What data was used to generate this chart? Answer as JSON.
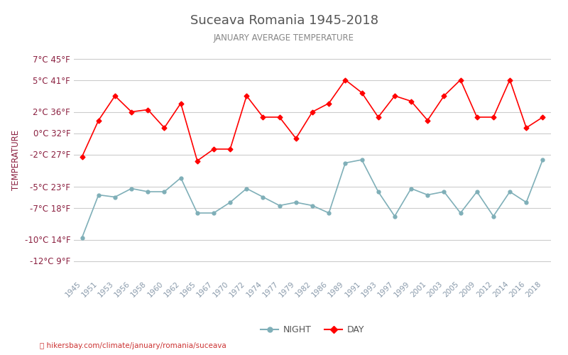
{
  "title": "Suceava Romania 1945-2018",
  "subtitle": "JANUARY AVERAGE TEMPERATURE",
  "ylabel": "TEMPERATURE",
  "url_text": "hikersbay.com/climate/january/romania/suceava",
  "years": [
    "1945",
    "1951",
    "1953",
    "1956",
    "1958",
    "1960",
    "1962",
    "1965",
    "1967",
    "1970",
    "1972",
    "1974",
    "1977",
    "1979",
    "1982",
    "1986",
    "1989",
    "1991",
    "1993",
    "1997",
    "1999",
    "2001",
    "2003",
    "2005",
    "2009",
    "2012",
    "2014",
    "2016",
    "2018"
  ],
  "day_temps": [
    -2.2,
    1.2,
    3.5,
    2.0,
    2.2,
    0.5,
    2.8,
    -2.6,
    -1.5,
    -1.5,
    3.5,
    1.5,
    1.5,
    -0.5,
    2.0,
    2.8,
    5.0,
    3.8,
    1.5,
    3.5,
    3.0,
    1.2,
    3.5,
    5.0,
    1.5,
    1.5,
    5.0,
    0.5,
    1.5
  ],
  "night_temps": [
    -9.8,
    -5.8,
    -6.0,
    -5.2,
    -5.5,
    -5.5,
    -4.2,
    -7.5,
    -7.5,
    -6.5,
    -5.2,
    -6.0,
    -6.8,
    -6.5,
    -6.8,
    -7.5,
    -2.8,
    -2.5,
    -5.5,
    -7.8,
    -5.2,
    -5.8,
    -5.5,
    -7.5,
    -5.5,
    -7.8,
    -5.5,
    -6.5,
    -2.5
  ],
  "yticks_c": [
    7,
    5,
    2,
    0,
    -2,
    -5,
    -7,
    -10,
    -12
  ],
  "yticks_f": [
    45,
    41,
    36,
    32,
    27,
    23,
    18,
    14,
    9
  ],
  "ylim": [
    -13.5,
    8.5
  ],
  "day_color": "#ff0000",
  "night_color": "#7fafb8",
  "title_color": "#555555",
  "subtitle_color": "#888888",
  "label_color": "#8b2040",
  "bg_color": "#ffffff",
  "grid_color": "#cccccc"
}
